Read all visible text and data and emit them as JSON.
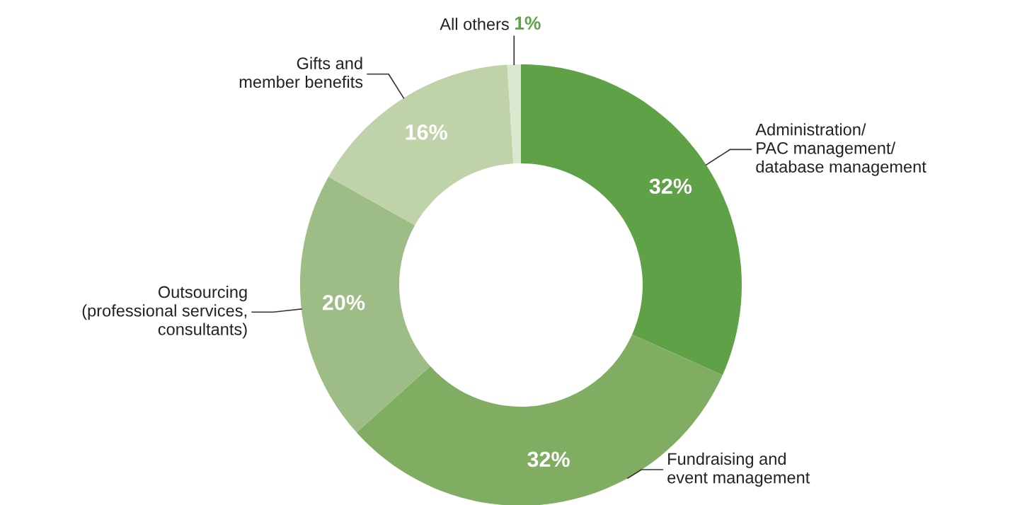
{
  "chart_data": {
    "type": "donut",
    "categories": [
      "Administration/\nPAC management/\ndatabase management",
      "Fundraising and\nevent management",
      "Outsourcing\n(professional services,\nconsultants)",
      "Gifts and\nmember benefits",
      "All others"
    ],
    "values": [
      32,
      32,
      20,
      16,
      1
    ],
    "colors": [
      "#5ea146",
      "#80ad62",
      "#9ebd86",
      "#bfd2aa",
      "#dbe7cf"
    ],
    "value_labels": [
      "32%",
      "32%",
      "20%",
      "16%",
      "1%"
    ]
  }
}
